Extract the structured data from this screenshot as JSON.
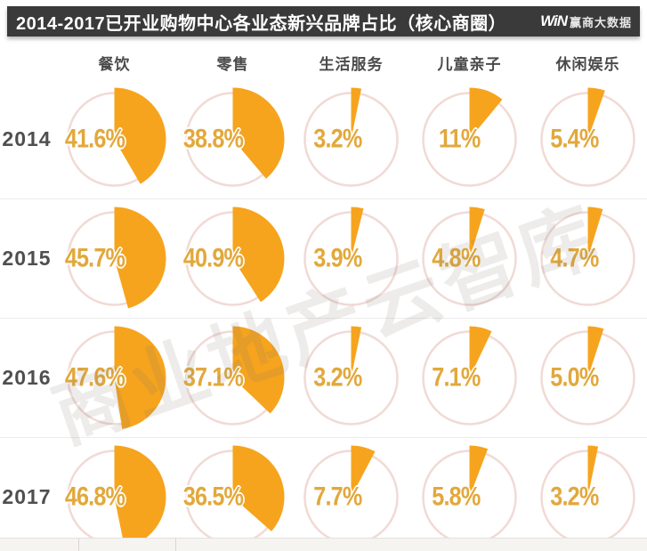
{
  "header": {
    "title": "2014-2017已开业购物中心各业态新兴品牌占比（核心商圈）",
    "logo": {
      "mark": "WiN",
      "text": "赢商大数据"
    }
  },
  "watermark": "商业地产云智库",
  "chart_data": {
    "type": "pie",
    "title": "2014-2017已开业购物中心各业态新兴品牌占比（核心商圈）",
    "unit": "%",
    "layout": "grid of pie wedges; rows = years, columns = categories; wedge starts at 12 o'clock, clockwise",
    "categories": [
      "餐饮",
      "零售",
      "生活服务",
      "儿童亲子",
      "休闲娱乐"
    ],
    "rows": [
      {
        "year": "2014",
        "values": [
          41.6,
          38.8,
          3.2,
          11,
          5.4
        ],
        "labels": [
          "41.6%",
          "38.8%",
          "3.2%",
          "11%",
          "5.4%"
        ]
      },
      {
        "year": "2015",
        "values": [
          45.7,
          40.9,
          3.9,
          4.8,
          4.7
        ],
        "labels": [
          "45.7%",
          "40.9%",
          "3.9%",
          "4.8%",
          "4.7%"
        ]
      },
      {
        "year": "2016",
        "values": [
          47.6,
          37.1,
          3.2,
          7.1,
          5.0
        ],
        "labels": [
          "47.6%",
          "37.1%",
          "3.2%",
          "7.1%",
          "5.0%"
        ]
      },
      {
        "year": "2017",
        "values": [
          46.8,
          36.5,
          7.7,
          5.8,
          3.2
        ],
        "labels": [
          "46.8%",
          "36.5%",
          "7.7%",
          "5.8%",
          "3.2%"
        ]
      }
    ],
    "colors": {
      "slice": "#f6a41e",
      "value_label": "#e2a83b",
      "circle_stroke": "#f1dad5",
      "header_bar": "#3a3a3a",
      "text": "#4a4a4a"
    }
  }
}
